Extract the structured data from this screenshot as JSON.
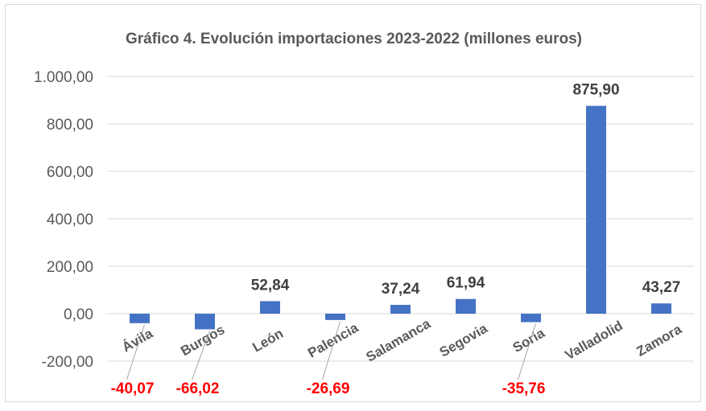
{
  "chart_data": {
    "type": "bar",
    "title": "Gráfico 4. Evolución importaciones 2023-2022 (millones euros)",
    "xlabel": "",
    "ylabel": "",
    "ylim": [
      -200,
      1000
    ],
    "yticks": [
      -200,
      0,
      200,
      400,
      600,
      800,
      1000
    ],
    "ytick_labels": [
      "-200,00",
      "0,00",
      "200,00",
      "400,00",
      "600,00",
      "800,00",
      "1.000,00"
    ],
    "categories": [
      "Ávila",
      "Burgos",
      "León",
      "Palencia",
      "Salamanca",
      "Segovia",
      "Soria",
      "Valladolid",
      "Zamora"
    ],
    "values": [
      -40.07,
      -66.02,
      52.84,
      -26.69,
      37.24,
      61.94,
      -35.76,
      875.9,
      43.27
    ],
    "data_labels": [
      "-40,07",
      "-66,02",
      "52,84",
      "-26,69",
      "37,24",
      "61,94",
      "-35,76",
      "875,90",
      "43,27"
    ],
    "grid": true,
    "legend": "none",
    "colors": {
      "bar": "#4472c4",
      "positive_label": "#404040",
      "negative_label": "#ff0000",
      "gridline": "#d9d9d9",
      "text": "#595959"
    }
  }
}
